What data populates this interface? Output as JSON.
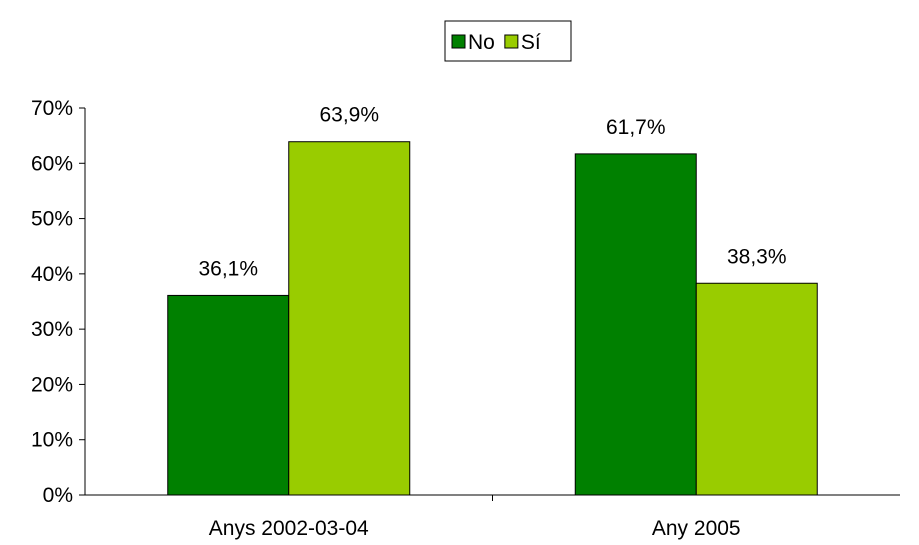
{
  "chart_data": {
    "type": "bar",
    "categories": [
      "Anys 2002-03-04",
      "Any 2005"
    ],
    "series": [
      {
        "name": "No",
        "values": [
          36.1,
          61.7
        ],
        "labels": [
          "36,1%",
          "61,7%"
        ],
        "color": "#008000"
      },
      {
        "name": "Sí",
        "values": [
          63.9,
          38.3
        ],
        "labels": [
          "63,9%",
          "38,3%"
        ],
        "color": "#99cc00"
      }
    ],
    "y_ticks": [
      "0%",
      "10%",
      "20%",
      "30%",
      "40%",
      "50%",
      "60%",
      "70%"
    ],
    "ylim": [
      0,
      70
    ],
    "grid": false,
    "legend_position": "top-center"
  }
}
